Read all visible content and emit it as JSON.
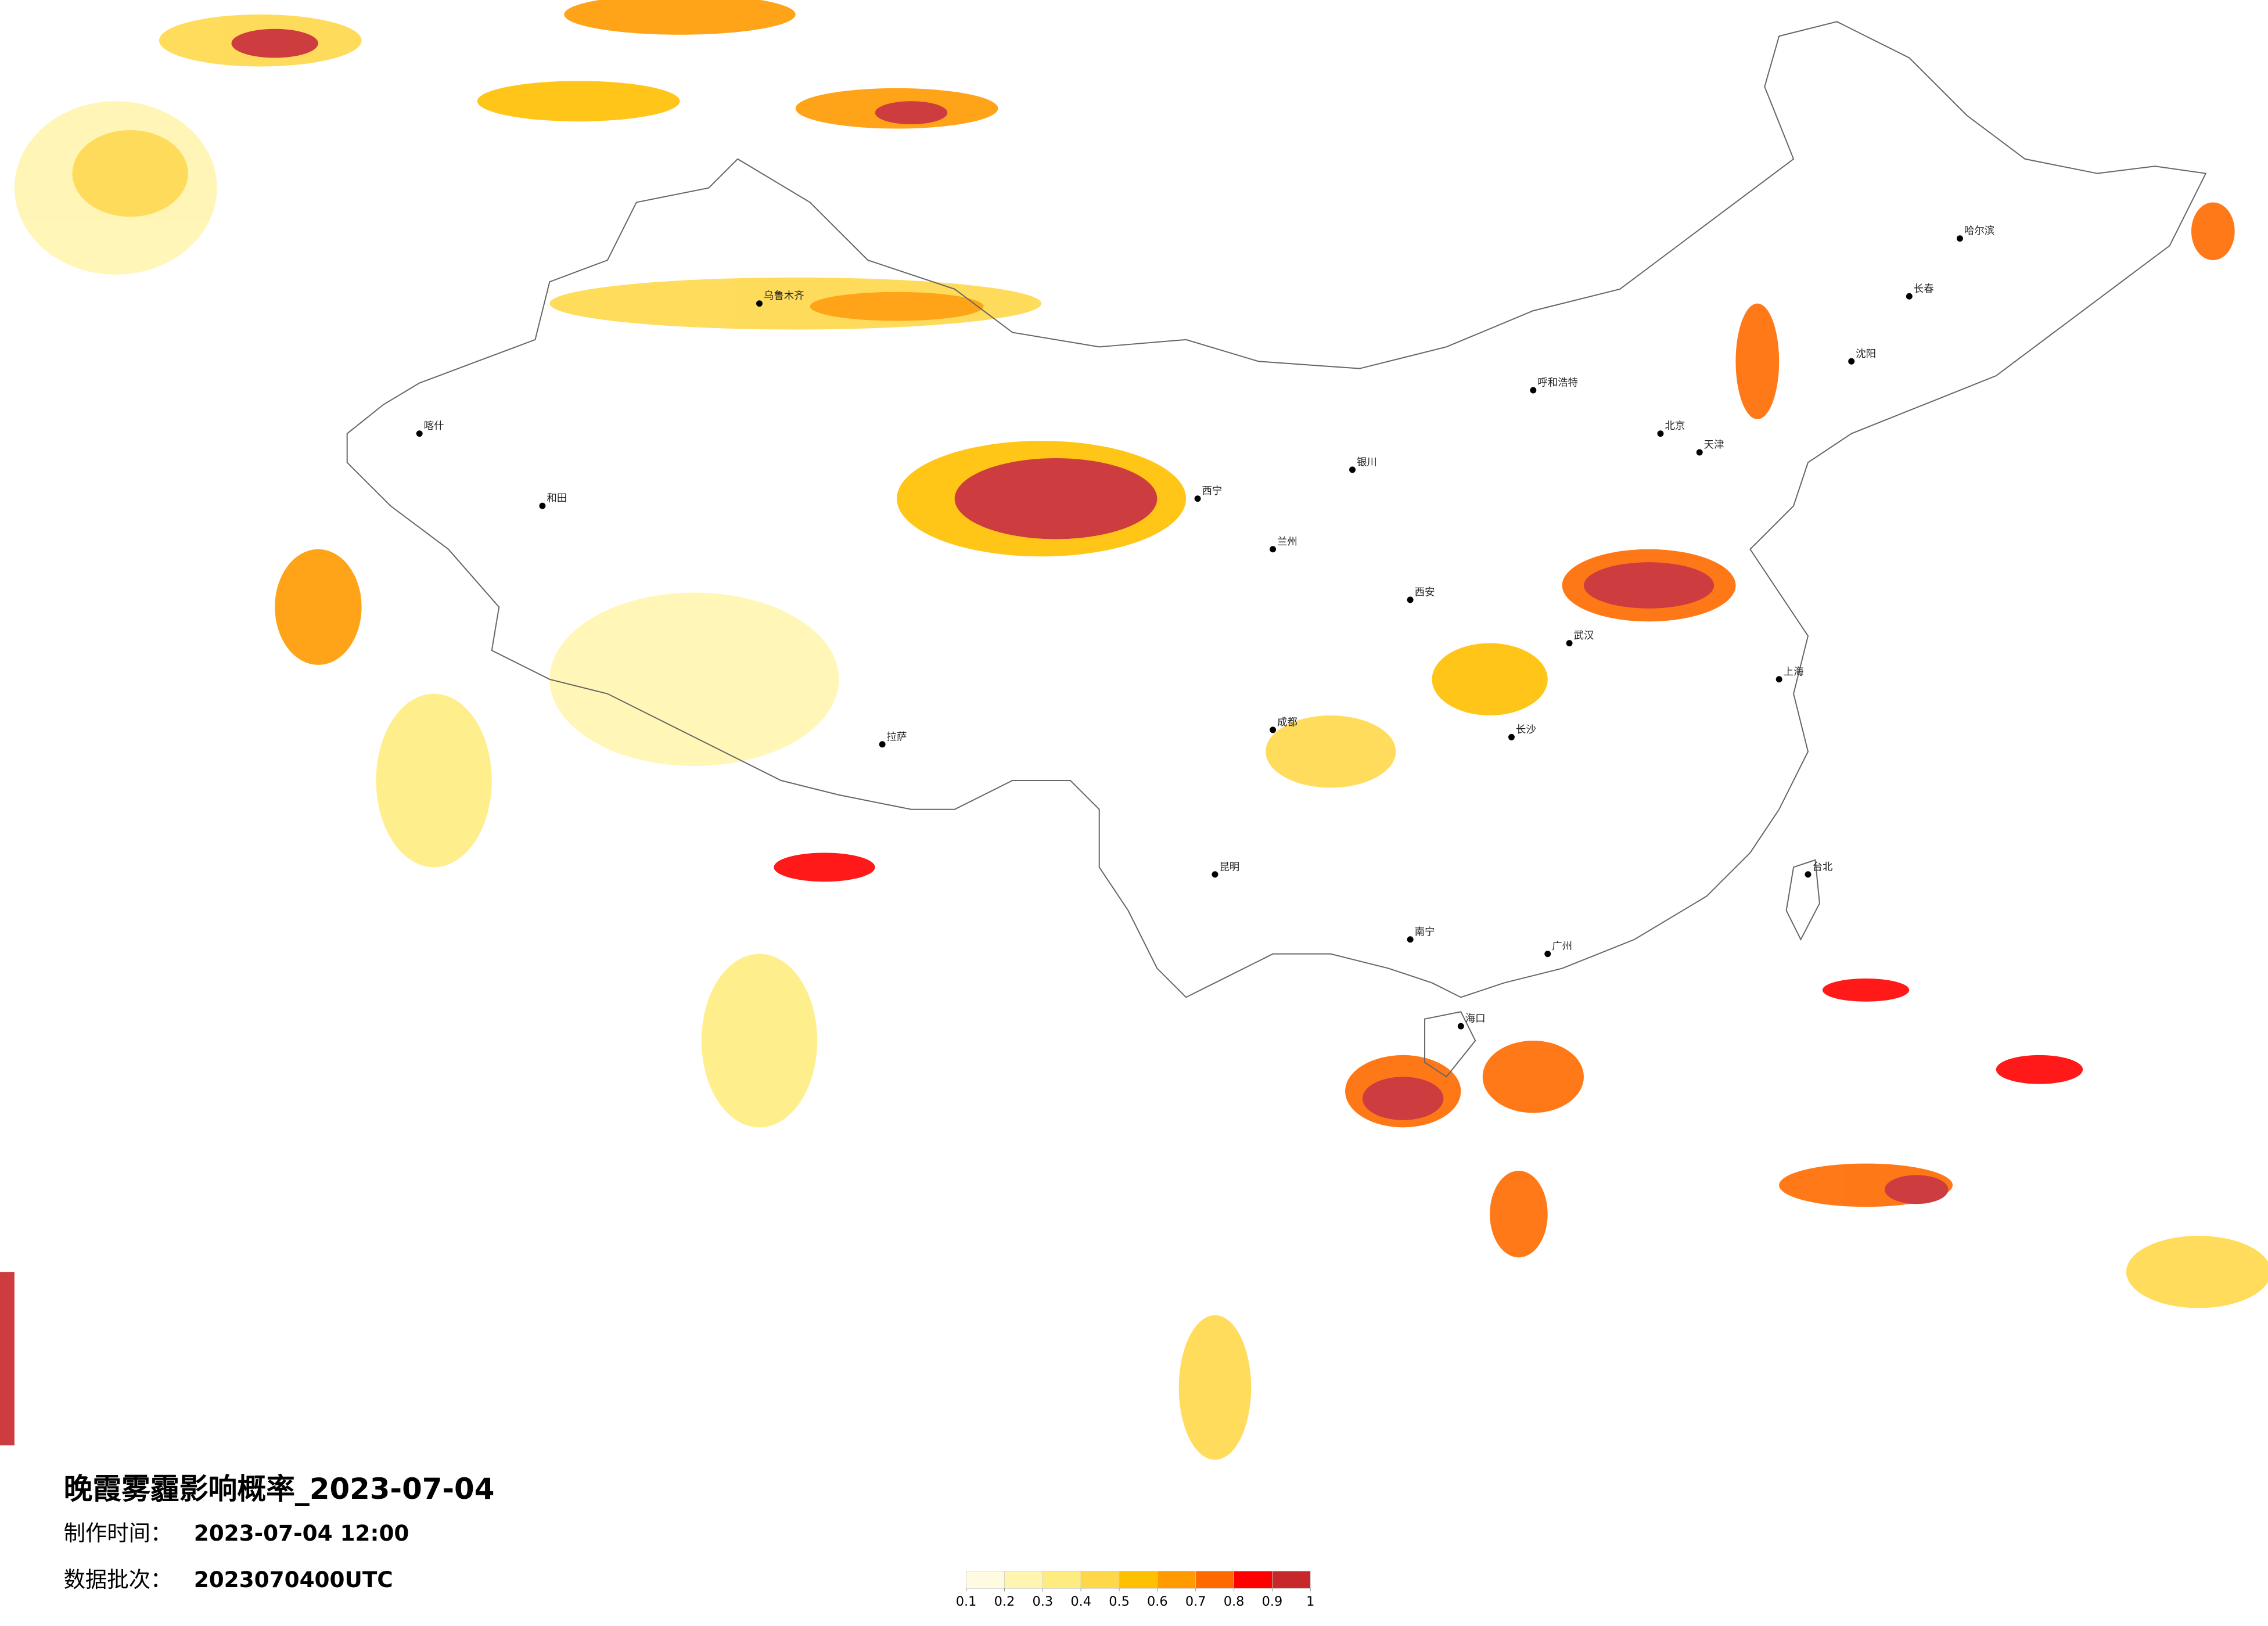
{
  "header": {
    "title": "晚霞雾霾影响概率_2023-07-04",
    "made_label": "制作时间：",
    "made_time": "2023-07-04 12:00",
    "batch_label": "数据批次：",
    "batch": "2023070400UTC"
  },
  "cities": [
    "北京",
    "天津",
    "上海",
    "广州",
    "成都",
    "西宁",
    "乌鲁木齐",
    "拉萨",
    "哈尔滨",
    "长春",
    "沈阳",
    "呼和浩特",
    "武汉",
    "长沙",
    "南宁",
    "昆明",
    "台北",
    "海口",
    "西安",
    "兰州",
    "银川",
    "和田",
    "喀什"
  ],
  "legend": {
    "ticks": [
      0.1,
      0.2,
      0.3,
      0.4,
      0.5,
      0.6,
      0.7,
      0.8,
      0.9,
      1
    ],
    "colors": [
      "#fffbe0",
      "#fff5b0",
      "#ffec80",
      "#ffd84a",
      "#ffc000",
      "#ff9a00",
      "#ff6a00",
      "#ff0000",
      "#c8282a"
    ]
  }
}
